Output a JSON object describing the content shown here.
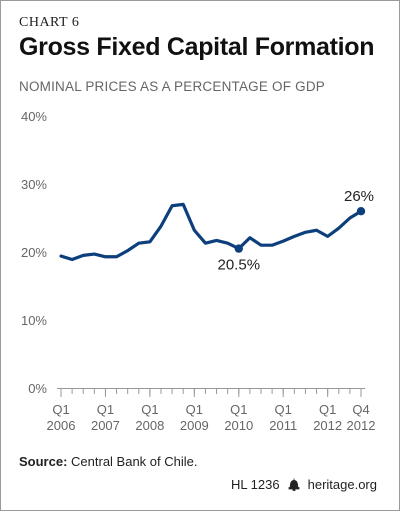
{
  "header": {
    "chart_number": "CHART 6",
    "title": "Gross Fixed Capital Formation",
    "subtitle": "NOMINAL PRICES AS A PERCENTAGE OF GDP"
  },
  "footer": {
    "source_label": "Source:",
    "source_text": "Central Bank of Chile.",
    "report_id": "HL 1236",
    "site": "heritage.org"
  },
  "colors": {
    "line": "#0d3f7c",
    "axis": "#999999",
    "tick_text": "#666666",
    "annotation_text": "#222222"
  },
  "chart_data": {
    "type": "line",
    "title": "Gross Fixed Capital Formation",
    "subtitle": "NOMINAL PRICES AS A PERCENTAGE OF GDP",
    "xlabel": "",
    "ylabel": "",
    "ylim": [
      0,
      40
    ],
    "y_ticks": [
      0,
      10,
      20,
      30,
      40
    ],
    "y_tick_labels": [
      "0%",
      "10%",
      "20%",
      "30%",
      "40%"
    ],
    "x_range": [
      "2006 Q1",
      "2012 Q4"
    ],
    "x_tick_labels": [
      {
        "at": "2006 Q1",
        "line1": "Q1",
        "line2": "2006"
      },
      {
        "at": "2007 Q1",
        "line1": "Q1",
        "line2": "2007"
      },
      {
        "at": "2008 Q1",
        "line1": "Q1",
        "line2": "2008"
      },
      {
        "at": "2009 Q1",
        "line1": "Q1",
        "line2": "2009"
      },
      {
        "at": "2010 Q1",
        "line1": "Q1",
        "line2": "2010"
      },
      {
        "at": "2011 Q1",
        "line1": "Q1",
        "line2": "2011"
      },
      {
        "at": "2012 Q1",
        "line1": "Q1",
        "line2": "2012"
      },
      {
        "at": "2012 Q4",
        "line1": "Q4",
        "line2": "2012"
      }
    ],
    "grid": false,
    "legend": "none",
    "series": [
      {
        "x": [
          "2006 Q1",
          "2006 Q2",
          "2006 Q3",
          "2006 Q4",
          "2007 Q1",
          "2007 Q2",
          "2007 Q3",
          "2007 Q4",
          "2008 Q1",
          "2008 Q2",
          "2008 Q3",
          "2008 Q4",
          "2009 Q1",
          "2009 Q2",
          "2009 Q3",
          "2009 Q4",
          "2010 Q1",
          "2010 Q2",
          "2010 Q3",
          "2010 Q4",
          "2011 Q1",
          "2011 Q2",
          "2011 Q3",
          "2011 Q4",
          "2012 Q1",
          "2012 Q2",
          "2012 Q3",
          "2012 Q4"
        ],
        "values": [
          19.4,
          18.9,
          19.5,
          19.7,
          19.3,
          19.3,
          20.2,
          21.3,
          21.5,
          23.8,
          26.8,
          27.0,
          23.2,
          21.3,
          21.7,
          21.3,
          20.5,
          22.1,
          21.0,
          21.0,
          21.6,
          22.3,
          22.9,
          23.2,
          22.3,
          23.5,
          25.0,
          26.0
        ]
      }
    ],
    "annotations": [
      {
        "at": "2010 Q1",
        "value": 20.5,
        "text": "20.5%"
      },
      {
        "at": "2012 Q4",
        "value": 26.0,
        "text": "26%"
      }
    ]
  }
}
